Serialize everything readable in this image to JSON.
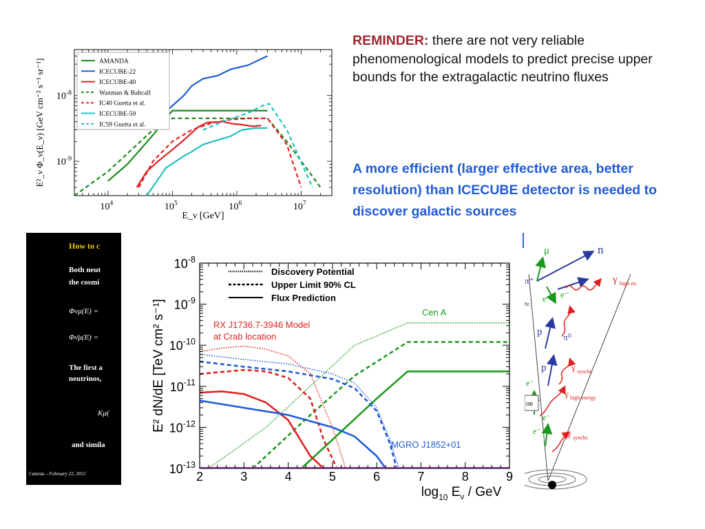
{
  "reminder": {
    "label": "REMINDER:",
    "text": " there are not very reliable phenomenological models to predict precise upper bounds for the extragalactic neutrino fluxes"
  },
  "note": "A more efficient (larger effective area, better resolution) than ICECUBE detector is needed to discover galactic sources",
  "chart_data": [
    {
      "type": "line",
      "title": "",
      "xlabel": "E_ν [GeV]",
      "ylabel": "E²_ν Φ_ν(E_ν) [GeV cm⁻² s⁻¹ sr⁻¹]",
      "x_scale": "log",
      "y_scale": "log",
      "xlim": [
        3000,
        30000000
      ],
      "ylim": [
        3e-10,
        5e-08
      ],
      "x_ticks": [
        {
          "label_base": "10",
          "label_exp": "4"
        },
        {
          "label_base": "10",
          "label_exp": "5"
        },
        {
          "label_base": "10",
          "label_exp": "6"
        },
        {
          "label_base": "10",
          "label_exp": "7"
        }
      ],
      "y_ticks": [
        {
          "label_base": "10",
          "label_exp": "-8"
        },
        {
          "label_base": "10",
          "label_exp": "-9"
        }
      ],
      "legend_position": "top-left",
      "series": [
        {
          "name": "AMANDA",
          "color": "#1a8a1a",
          "dash": "solid",
          "x": [
            10000,
            20000,
            50000,
            80000,
            100000,
            3000000
          ],
          "y": [
            5e-10,
            9e-10,
            2.5e-09,
            4.5e-09,
            5.9e-09,
            5.9e-09
          ]
        },
        {
          "name": "ICECUBE-22",
          "color": "#1f5bd6",
          "dash": "solid",
          "x": [
            50000,
            80000,
            100000,
            150000,
            200000,
            300000,
            500000,
            800000,
            1500000,
            3000000
          ],
          "y": [
            4.5e-09,
            5.8e-09,
            7e-09,
            1e-08,
            1.4e-08,
            1.8e-08,
            2e-08,
            2.5e-08,
            2.9e-08,
            4e-08
          ]
        },
        {
          "name": "ICECUBE-40",
          "color": "#e02020",
          "dash": "solid",
          "x": [
            28000,
            40000,
            60000,
            100000,
            150000,
            250000,
            350000,
            600000,
            900000,
            1200000,
            1800000,
            2400000
          ],
          "y": [
            4e-10,
            7e-10,
            1e-09,
            1.5e-09,
            2.1e-09,
            3.3e-09,
            3.9e-09,
            4e-09,
            3.7e-09,
            3.6e-09,
            3.4e-09,
            3.5e-09
          ]
        },
        {
          "name": "Waxman & Bahcall",
          "color": "#1a8a1a",
          "dash": "dashed",
          "x": [
            3000,
            10000,
            50000,
            100000,
            3000000,
            6000000,
            20000000
          ],
          "y": [
            3e-10,
            7e-10,
            3e-09,
            4.5e-09,
            4.5e-09,
            2e-09,
            4e-10
          ]
        },
        {
          "name": "IC40 Guetta et al.",
          "color": "#e02020",
          "dash": "dashed",
          "x": [
            30000,
            50000,
            100000,
            200000,
            400000,
            800000,
            1500000,
            3000000,
            6000000,
            10000000
          ],
          "y": [
            4e-10,
            1e-09,
            2e-09,
            3e-09,
            3.8e-09,
            4.3e-09,
            4.5e-09,
            4.5e-09,
            1.8e-09,
            4e-10
          ]
        },
        {
          "name": "ICECUBE-59",
          "color": "#20c0c0",
          "dash": "solid",
          "x": [
            40000,
            80000,
            150000,
            200000,
            300000,
            500000,
            800000,
            1200000,
            2000000,
            3000000
          ],
          "y": [
            3e-10,
            8e-10,
            1.2e-09,
            1.4e-09,
            1.8e-09,
            2.1e-09,
            2.4e-09,
            3e-09,
            3.2e-09,
            3.2e-09
          ]
        },
        {
          "name": "IC59 Guetta et al.",
          "color": "#20c0c0",
          "dash": "dashed",
          "x": [
            300000,
            600000,
            1000000,
            1600000,
            2500000,
            3200000,
            6000000,
            15000000
          ],
          "y": [
            3e-09,
            4e-09,
            4.7e-09,
            5.6e-09,
            7e-09,
            7.5e-09,
            3e-09,
            4e-10
          ]
        }
      ]
    },
    {
      "type": "line",
      "title": "",
      "xlabel_base": "log",
      "xlabel_sub": "10",
      "xlabel_rest": " E",
      "xlabel_nu": "ν",
      "xlabel_unit": " / GeV",
      "ylabel": "E² dN/dE [TeV cm² s⁻¹]",
      "y_scale": "log",
      "xlim": [
        2,
        9
      ],
      "ylim": [
        1e-13,
        1e-08
      ],
      "x_ticks": [
        "2",
        "3",
        "4",
        "5",
        "6",
        "7",
        "8",
        "9"
      ],
      "y_ticks": [
        {
          "label_base": "10",
          "label_exp": "-8"
        },
        {
          "label_base": "10",
          "label_exp": "-9"
        },
        {
          "label_base": "10",
          "label_exp": "-10"
        },
        {
          "label_base": "10",
          "label_exp": "-11"
        },
        {
          "label_base": "10",
          "label_exp": "-12"
        },
        {
          "label_base": "10",
          "label_exp": "-13"
        }
      ],
      "legend": [
        {
          "label": "Discovery Potential",
          "dash": "dotted"
        },
        {
          "label": "Upper Limit 90% CL",
          "dash": "dashed"
        },
        {
          "label": "Flux Prediction",
          "dash": "solid"
        }
      ],
      "annotations": [
        {
          "text": "Cen A",
          "color": "#1a9a1a"
        },
        {
          "text": "RX J1736.7-3946 Model",
          "color": "#e02020"
        },
        {
          "text": "at Crab location",
          "color": "#e02020"
        },
        {
          "text": "MGRO J1852+01",
          "color": "#1f5bd6"
        }
      ],
      "series": [
        {
          "group": "Cen A",
          "dash": "dotted",
          "color": "#1a9a1a",
          "x": [
            2.2,
            3.5,
            4.5,
            5.5,
            6.7,
            9
          ],
          "y": [
            1e-13,
            1e-12,
            1e-11,
            1e-10,
            3.5e-10,
            3.5e-10
          ]
        },
        {
          "group": "Cen A",
          "dash": "dashed",
          "color": "#1a9a1a",
          "x": [
            3.2,
            4.5,
            5.5,
            6.7,
            9
          ],
          "y": [
            1e-13,
            2e-12,
            1.8e-11,
            1.2e-10,
            1.2e-10
          ]
        },
        {
          "group": "Cen A",
          "dash": "solid",
          "color": "#1a9a1a",
          "x": [
            4.3,
            5,
            6,
            6.7,
            9
          ],
          "y": [
            1e-13,
            5e-13,
            5e-12,
            2.3e-11,
            2.3e-11
          ]
        },
        {
          "group": "RX J1736.7-3946",
          "dash": "dotted",
          "color": "#e02020",
          "x": [
            2,
            2.5,
            3,
            3.5,
            4,
            4.5,
            5,
            5.3
          ],
          "y": [
            7e-11,
            8.5e-11,
            9.5e-11,
            8e-11,
            5.5e-11,
            2e-11,
            1e-12,
            1e-13
          ]
        },
        {
          "group": "RX J1736.7-3946",
          "dash": "dashed",
          "color": "#e02020",
          "x": [
            2,
            3,
            3.5,
            4,
            4.5,
            4.8,
            5.1
          ],
          "y": [
            2e-11,
            2.5e-11,
            2.3e-11,
            1.6e-11,
            5e-12,
            5e-13,
            1e-13
          ]
        },
        {
          "group": "RX J1736.7-3946",
          "dash": "solid",
          "color": "#e02020",
          "x": [
            2,
            2.5,
            3,
            3.5,
            4,
            4.5,
            4.8
          ],
          "y": [
            7e-12,
            7.5e-12,
            6.5e-12,
            4e-12,
            1.5e-12,
            2e-13,
            1e-13
          ]
        },
        {
          "group": "MGRO J1852+01",
          "dash": "dotted",
          "color": "#1f5bd6",
          "x": [
            2,
            3,
            4,
            5,
            5.5,
            6,
            6.3,
            6.5
          ],
          "y": [
            6e-11,
            4.5e-11,
            3.5e-11,
            2e-11,
            1.2e-11,
            3e-12,
            5e-13,
            1e-13
          ]
        },
        {
          "group": "MGRO J1852+01",
          "dash": "dashed",
          "color": "#1f5bd6",
          "x": [
            2,
            3,
            4,
            5,
            5.5,
            6,
            6.3,
            6.45
          ],
          "y": [
            4e-11,
            3e-11,
            2.3e-11,
            1.5e-11,
            9e-12,
            2.5e-12,
            4e-13,
            1e-13
          ]
        },
        {
          "group": "MGRO J1852+01",
          "dash": "solid",
          "color": "#1f5bd6",
          "x": [
            2,
            3,
            4,
            5,
            5.5,
            6,
            6.2
          ],
          "y": [
            4.5e-12,
            3e-12,
            2e-12,
            1e-12,
            6e-13,
            2e-13,
            1e-13
          ]
        }
      ]
    }
  ],
  "dark_slide": {
    "heading": "How to c",
    "line1": "Both neut",
    "line2": "the cosmi",
    "eq1": "Φνμ(E) =",
    "eq2": "Φν̄μ(E) =",
    "line3": "The first a",
    "line4": "neutrinos,",
    "eq3": "Kμ(",
    "line5": "and simila",
    "footer": "Catania – February 22, 2012"
  },
  "diagram": {
    "labels": {
      "mu": "μ",
      "n": "n",
      "pi_plus": "π⁺",
      "e_plus": "e⁺",
      "e_minus": "e⁻",
      "gamma_high_en": "γ",
      "gamma_high_en_sub": "high en.",
      "p1": "p",
      "pi0": "π⁰",
      "p2": "p",
      "gamma_synchr1": "γ",
      "gamma_synchr1_sub": "synchr.",
      "e_minus2": "e⁻",
      "gamma_high_energy": "γ",
      "gamma_high_energy_sub": "high energy",
      "e_minus3": "e⁻",
      "e_minus4": "e⁻",
      "gamma_synchr2": "γ",
      "gamma_synchr2_sub": "synchr.",
      "side1": "hr.",
      "side2": "on"
    }
  }
}
